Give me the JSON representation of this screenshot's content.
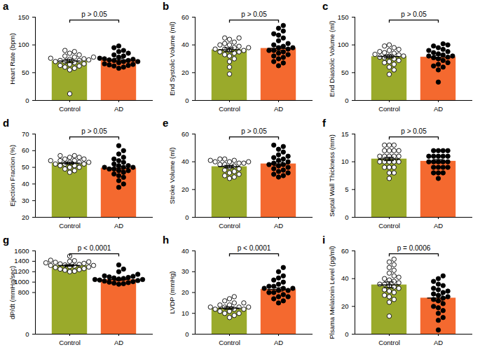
{
  "chart_data": [
    {
      "type": "bar",
      "title": "a",
      "ylabel": "Heart Rate (bpm)",
      "categories": [
        "Control",
        "AD"
      ],
      "values": [
        71,
        73
      ],
      "errors": [
        3,
        2.8
      ],
      "colors": [
        "#9aaa2b",
        "#f4692f"
      ],
      "ylim": [
        0,
        150
      ],
      "yticks": [
        0,
        50,
        100,
        150
      ],
      "annotations": [
        "p > 0.05"
      ],
      "points": [
        [
          12,
          55,
          58,
          60,
          62,
          63,
          65,
          66,
          68,
          70,
          70,
          72,
          72,
          73,
          74,
          75,
          76,
          78,
          78,
          80,
          82,
          85,
          88,
          90
        ],
        [
          58,
          60,
          62,
          63,
          64,
          65,
          66,
          68,
          70,
          70,
          72,
          72,
          73,
          74,
          75,
          76,
          78,
          80,
          82,
          85,
          88,
          90,
          95,
          98
        ]
      ]
    },
    {
      "type": "bar",
      "title": "b",
      "ylabel": "End Systolic Volume (ml)",
      "categories": [
        "Control",
        "AD"
      ],
      "values": [
        36.5,
        37.5
      ],
      "errors": [
        1.3,
        1.5
      ],
      "colors": [
        "#9aaa2b",
        "#f4692f"
      ],
      "ylim": [
        0,
        60
      ],
      "yticks": [
        0,
        20,
        40,
        60
      ],
      "annotations": [
        "p > 0.05"
      ],
      "points": [
        [
          19,
          24,
          28,
          30,
          32,
          33,
          34,
          35,
          35,
          36,
          36,
          37,
          37,
          38,
          38,
          39,
          40,
          40,
          41,
          42,
          44,
          45,
          45
        ],
        [
          25,
          27,
          28,
          30,
          31,
          32,
          33,
          34,
          35,
          36,
          36,
          37,
          38,
          38,
          39,
          40,
          41,
          43,
          45,
          47,
          48,
          50,
          52,
          54
        ]
      ]
    },
    {
      "type": "bar",
      "title": "c",
      "ylabel": "End Diastolic Volume (ml)",
      "categories": [
        "Control",
        "AD"
      ],
      "values": [
        79,
        78
      ],
      "errors": [
        2.5,
        3
      ],
      "colors": [
        "#9aaa2b",
        "#f4692f"
      ],
      "ylim": [
        0,
        150
      ],
      "yticks": [
        0,
        50,
        100,
        150
      ],
      "annotations": [
        "p > 0.05"
      ],
      "points": [
        [
          47,
          55,
          60,
          65,
          68,
          70,
          72,
          75,
          77,
          78,
          80,
          80,
          82,
          83,
          85,
          86,
          88,
          90,
          92,
          95,
          98,
          100
        ],
        [
          33,
          55,
          60,
          62,
          65,
          68,
          72,
          75,
          77,
          78,
          80,
          80,
          82,
          84,
          86,
          88,
          90,
          92,
          95,
          98,
          100,
          102
        ]
      ]
    },
    {
      "type": "bar",
      "title": "d",
      "ylabel": "Ejection Fraction (%)",
      "categories": [
        "Control",
        "AD"
      ],
      "values": [
        52.5,
        49.5
      ],
      "errors": [
        0.6,
        1.1
      ],
      "colors": [
        "#9aaa2b",
        "#f4692f"
      ],
      "ylim": [
        20,
        70
      ],
      "yticks": [
        20,
        30,
        40,
        50,
        60,
        70
      ],
      "annotations": [
        "p > 0.05"
      ],
      "points": [
        [
          47,
          48,
          49,
          50,
          50,
          51,
          51,
          52,
          52,
          52,
          53,
          53,
          53,
          54,
          54,
          54,
          55,
          55,
          56,
          56,
          57,
          57
        ],
        [
          38,
          40,
          42,
          44,
          45,
          46,
          47,
          48,
          48,
          49,
          49,
          50,
          50,
          50,
          51,
          51,
          52,
          53,
          54,
          55,
          56,
          58,
          60,
          63
        ]
      ]
    },
    {
      "type": "bar",
      "title": "e",
      "ylabel": "Stroke Volume (ml)",
      "categories": [
        "Control",
        "AD"
      ],
      "values": [
        36.5,
        38.5
      ],
      "errors": [
        0.9,
        1.3
      ],
      "colors": [
        "#9aaa2b",
        "#f4692f"
      ],
      "ylim": [
        0,
        60
      ],
      "yticks": [
        0,
        20,
        40,
        60
      ],
      "annotations": [
        "p > 0.05"
      ],
      "points": [
        [
          28,
          29,
          30,
          31,
          32,
          33,
          34,
          35,
          36,
          37,
          38,
          38,
          39,
          39,
          40,
          40,
          40,
          41,
          41,
          42,
          42
        ],
        [
          29,
          30,
          31,
          32,
          33,
          34,
          35,
          36,
          37,
          38,
          38,
          39,
          40,
          41,
          42,
          43,
          44,
          45,
          47,
          49,
          51,
          52
        ]
      ]
    },
    {
      "type": "bar",
      "title": "f",
      "ylabel": "Septal Wall Thickness (mm)",
      "categories": [
        "Control",
        "AD"
      ],
      "values": [
        10.5,
        10.1
      ],
      "errors": [
        0.3,
        0.3
      ],
      "colors": [
        "#9aaa2b",
        "#f4692f"
      ],
      "ylim": [
        0,
        15
      ],
      "yticks": [
        0,
        5,
        10,
        15
      ],
      "annotations": [
        "p > 0.05"
      ],
      "points": [
        [
          7,
          8,
          8,
          9,
          9,
          9,
          10,
          10,
          10,
          10,
          10,
          11,
          11,
          11,
          11,
          11,
          12,
          12,
          12,
          12,
          13,
          13,
          13
        ],
        [
          7,
          8,
          8,
          8,
          9,
          9,
          9,
          9,
          10,
          10,
          10,
          10,
          10,
          11,
          11,
          11,
          11,
          11,
          12,
          12,
          12,
          12
        ]
      ]
    },
    {
      "type": "bar",
      "title": "g",
      "ylabel": "dP/dt (mmHg/sec)",
      "categories": [
        "Control",
        "AD"
      ],
      "values": [
        1320,
        1050
      ],
      "errors": [
        15,
        18
      ],
      "colors": [
        "#9aaa2b",
        "#f4692f"
      ],
      "ylim": [
        0,
        1600
      ],
      "yticks": [
        0,
        800,
        1000,
        1200,
        1400,
        1600
      ],
      "annotations": [
        "p < 0.0001"
      ],
      "points": [
        [
          1200,
          1210,
          1230,
          1240,
          1250,
          1260,
          1280,
          1290,
          1300,
          1310,
          1320,
          1320,
          1330,
          1340,
          1350,
          1360,
          1370,
          1380,
          1390,
          1400,
          1410,
          1420,
          1500
        ],
        [
          960,
          970,
          980,
          990,
          1000,
          1010,
          1020,
          1030,
          1040,
          1050,
          1050,
          1060,
          1070,
          1080,
          1090,
          1100,
          1110,
          1120,
          1150,
          1200,
          1250,
          1330
        ]
      ]
    },
    {
      "type": "bar",
      "title": "h",
      "ylabel": "LVDP (mmHg)",
      "categories": [
        "Control",
        "AD"
      ],
      "values": [
        12.5,
        21.5
      ],
      "errors": [
        0.6,
        0.8
      ],
      "colors": [
        "#9aaa2b",
        "#f4692f"
      ],
      "ylim": [
        0,
        40
      ],
      "yticks": [
        0,
        10,
        20,
        30,
        40
      ],
      "annotations": [
        "p < 0.0001"
      ],
      "points": [
        [
          8,
          9,
          10,
          10,
          11,
          11,
          12,
          12,
          12,
          13,
          13,
          13,
          13,
          14,
          14,
          15,
          15,
          16,
          17,
          18
        ],
        [
          15,
          16,
          17,
          18,
          18,
          19,
          20,
          20,
          21,
          21,
          22,
          22,
          22,
          23,
          23,
          24,
          25,
          26,
          27,
          28,
          30,
          32
        ]
      ]
    },
    {
      "type": "bar",
      "title": "i",
      "ylabel": "Plsama Melatonin Level (pg/ml)",
      "categories": [
        "Control",
        "AD"
      ],
      "values": [
        35.5,
        26
      ],
      "errors": [
        2.1,
        2.1
      ],
      "colors": [
        "#9aaa2b",
        "#f4692f"
      ],
      "ylim": [
        0,
        60
      ],
      "yticks": [
        0,
        20,
        40,
        60
      ],
      "annotations": [
        "p = 0.0006"
      ],
      "points": [
        [
          13,
          23,
          25,
          27,
          28,
          30,
          31,
          32,
          33,
          34,
          35,
          36,
          36,
          37,
          38,
          39,
          40,
          41,
          42,
          44,
          46,
          48,
          50,
          52,
          54
        ],
        [
          3,
          10,
          12,
          15,
          17,
          19,
          20,
          22,
          24,
          25,
          26,
          27,
          28,
          29,
          30,
          31,
          32,
          33,
          35,
          36,
          38,
          40,
          42
        ]
      ]
    }
  ]
}
